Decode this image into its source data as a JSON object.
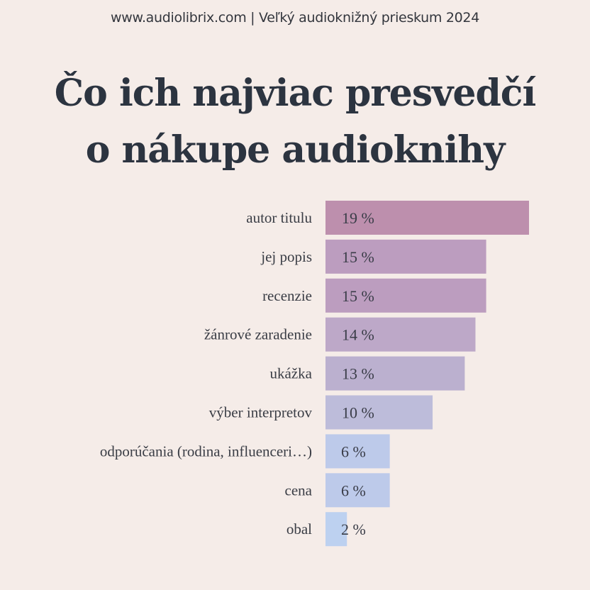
{
  "header": {
    "text": "www.audiolibrix.com | Veľký audioknižný prieskum 2024"
  },
  "title": {
    "line1": "Čo ich najviac presvedčí",
    "line2": "o nákupe audioknihy"
  },
  "chart_data": {
    "type": "bar",
    "orientation": "horizontal",
    "title": "Čo ich najviac presvedčí o nákupe audioknihy",
    "categories": [
      "autor titulu",
      "jej popis",
      "recenzie",
      "žánrové zaradenie",
      "ukážka",
      "výber interpretov",
      "odporúčania (rodina, influenceri…)",
      "cena",
      "obal"
    ],
    "values": [
      19,
      15,
      15,
      14,
      13,
      10,
      6,
      6,
      2
    ],
    "value_labels": [
      "19 %",
      "15 %",
      "15 %",
      "14 %",
      "13 %",
      "10 %",
      "6 %",
      "6 %",
      "2 %"
    ],
    "colors": [
      "#bd8fad",
      "#bc9dbf",
      "#bc9dbf",
      "#bda8c8",
      "#bbb0cf",
      "#bdbcda",
      "#bdcaea",
      "#bdcaea",
      "#bdd1f0"
    ],
    "unit": "%",
    "xlim": [
      0,
      19
    ],
    "grid": false
  }
}
